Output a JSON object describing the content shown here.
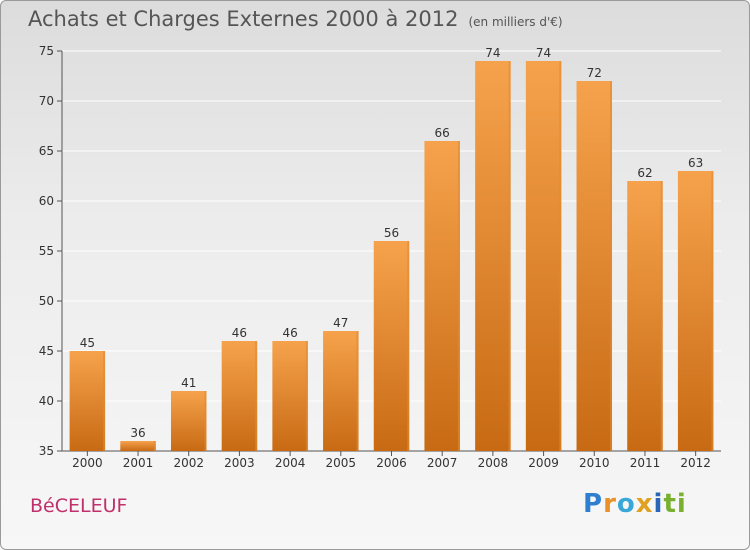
{
  "header": {
    "title": "Achats et Charges Externes 2000 à 2012",
    "unit": "(en milliers d'€)"
  },
  "footer": {
    "commune": "BéCELEUF",
    "logo_parts": [
      "P",
      "r",
      "o",
      "x",
      "i",
      "ti"
    ]
  },
  "colors": {
    "bar_light": "#f6a24c",
    "bar_dark": "#c86a14",
    "title": "#555555",
    "commune": "#c0306a",
    "grid": "#ffffff"
  },
  "chart_data": {
    "type": "bar",
    "title": "Achats et Charges Externes 2000 à 2012",
    "subtitle": "(en milliers d'€)",
    "xlabel": "",
    "ylabel": "",
    "categories": [
      "2000",
      "2001",
      "2002",
      "2003",
      "2004",
      "2005",
      "2006",
      "2007",
      "2008",
      "2009",
      "2010",
      "2011",
      "2012"
    ],
    "values": [
      45,
      36,
      41,
      46,
      46,
      47,
      56,
      66,
      74,
      74,
      72,
      62,
      63
    ],
    "ylim": [
      35,
      75
    ],
    "yticks": [
      35,
      40,
      45,
      50,
      55,
      60,
      65,
      70,
      75
    ],
    "grid": true,
    "legend": "none"
  }
}
